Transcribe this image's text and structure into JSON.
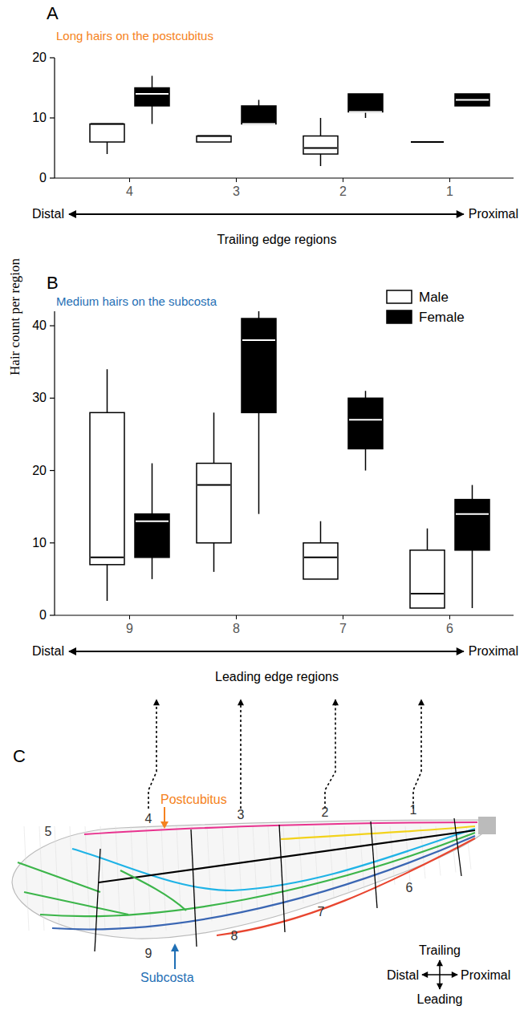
{
  "shared_y_label": "Hair count per region",
  "chart_data": [
    {
      "type": "box",
      "panel": "A",
      "title": "Long hairs on the postcubitus",
      "xlabel": "Trailing edge regions",
      "x_ends": [
        "Distal",
        "Proximal"
      ],
      "categories": [
        "4",
        "3",
        "2",
        "1"
      ],
      "ylim": [
        0,
        20
      ],
      "yticks": [
        0,
        10,
        20
      ],
      "series": [
        {
          "color": "#ffffff",
          "min": [
            4,
            6,
            2,
            6
          ],
          "q1": [
            6,
            6,
            4,
            6
          ],
          "median": [
            9,
            7,
            5,
            6
          ],
          "q3": [
            9,
            7,
            7,
            6
          ],
          "max": [
            9,
            7,
            10,
            6
          ]
        },
        {
          "color": "#000000",
          "min": [
            9,
            9,
            10,
            12
          ],
          "q1": [
            12,
            9,
            11,
            12
          ],
          "median": [
            14,
            9,
            11,
            13
          ],
          "q3": [
            15,
            12,
            14,
            14
          ],
          "max": [
            17,
            13,
            14,
            14
          ]
        }
      ]
    },
    {
      "type": "box",
      "panel": "B",
      "title": "Medium hairs on the subcosta",
      "xlabel": "Leading edge regions",
      "x_ends": [
        "Distal",
        "Proximal"
      ],
      "categories": [
        "9",
        "8",
        "7",
        "6"
      ],
      "ylim": [
        0,
        42
      ],
      "yticks": [
        0,
        10,
        20,
        30,
        40
      ],
      "legend": "top-right",
      "series": [
        {
          "name": "Male",
          "color": "#ffffff",
          "min": [
            2,
            6,
            5,
            1
          ],
          "q1": [
            7,
            10,
            5,
            1
          ],
          "median": [
            8,
            18,
            8,
            3
          ],
          "q3": [
            28,
            21,
            10,
            9
          ],
          "max": [
            34,
            28,
            13,
            12
          ]
        },
        {
          "name": "Female",
          "color": "#000000",
          "min": [
            5,
            14,
            20,
            1
          ],
          "q1": [
            8,
            28,
            23,
            9
          ],
          "median": [
            13,
            38,
            27,
            14
          ],
          "q3": [
            14,
            41,
            30,
            16
          ],
          "max": [
            21,
            42,
            31,
            18
          ]
        }
      ]
    }
  ],
  "wing_diagram": {
    "panel": "C",
    "region_labels": [
      "1",
      "2",
      "3",
      "4",
      "5",
      "6",
      "7",
      "8",
      "9"
    ],
    "vein_labels": [
      "Postcubitus",
      "Subcosta"
    ],
    "compass": {
      "trailing": "Trailing",
      "leading": "Leading",
      "distal": "Distal",
      "proximal": "Proximal"
    }
  }
}
